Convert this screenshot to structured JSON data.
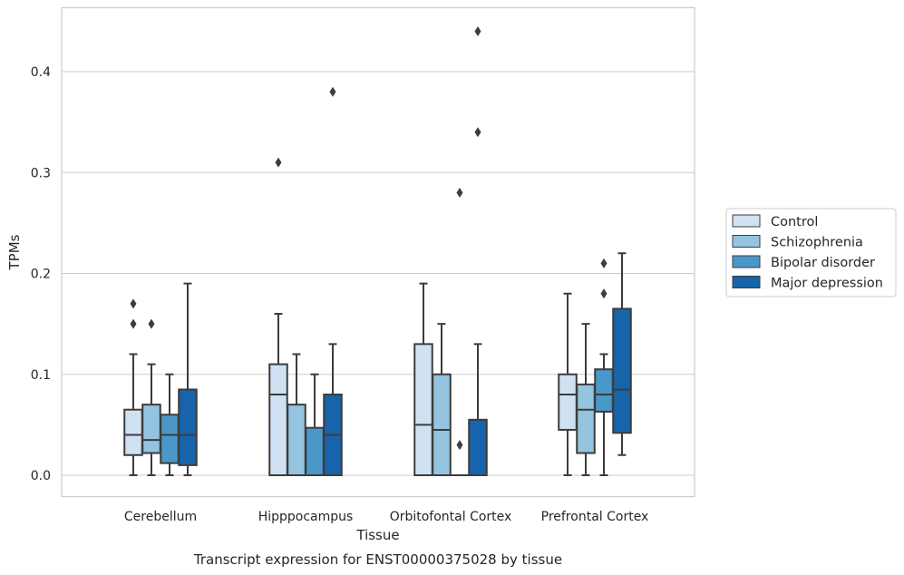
{
  "chart_data": {
    "type": "box",
    "title": "Transcript expression for ENST00000375028 by tissue",
    "xlabel": "Tissue",
    "ylabel": "TPMs",
    "ylim": [
      -0.021,
      0.464
    ],
    "yticks": [
      0.0,
      0.1,
      0.2,
      0.3,
      0.4
    ],
    "ytick_labels": [
      "0.0",
      "0.1",
      "0.2",
      "0.3",
      "0.4"
    ],
    "grid": "horizontal",
    "legend_position": "right",
    "categories": [
      "Cerebellum",
      "Hipppocampus",
      "Orbitofontal Cortex",
      "Prefrontal Cortex"
    ],
    "series": [
      {
        "name": "Control",
        "color": "#d0e1f2",
        "boxes": [
          {
            "q1": 0.02,
            "median": 0.04,
            "q3": 0.065,
            "whisker_low": 0.0,
            "whisker_high": 0.12,
            "outliers": [
              0.15,
              0.17
            ]
          },
          {
            "q1": 0.0,
            "median": 0.08,
            "q3": 0.11,
            "whisker_low": 0.0,
            "whisker_high": 0.16,
            "outliers": [
              0.31
            ]
          },
          {
            "q1": 0.0,
            "median": 0.05,
            "q3": 0.13,
            "whisker_low": 0.0,
            "whisker_high": 0.19,
            "outliers": []
          },
          {
            "q1": 0.045,
            "median": 0.08,
            "q3": 0.1,
            "whisker_low": 0.0,
            "whisker_high": 0.18,
            "outliers": []
          }
        ]
      },
      {
        "name": "Schizophrenia",
        "color": "#94c4df",
        "boxes": [
          {
            "q1": 0.022,
            "median": 0.035,
            "q3": 0.07,
            "whisker_low": 0.0,
            "whisker_high": 0.11,
            "outliers": [
              0.15
            ]
          },
          {
            "q1": 0.0,
            "median": 0.0,
            "q3": 0.07,
            "whisker_low": 0.0,
            "whisker_high": 0.12,
            "outliers": []
          },
          {
            "q1": 0.0,
            "median": 0.045,
            "q3": 0.1,
            "whisker_low": 0.0,
            "whisker_high": 0.15,
            "outliers": []
          },
          {
            "q1": 0.022,
            "median": 0.065,
            "q3": 0.09,
            "whisker_low": 0.0,
            "whisker_high": 0.15,
            "outliers": []
          }
        ]
      },
      {
        "name": "Bipolar disorder",
        "color": "#4a98c9",
        "boxes": [
          {
            "q1": 0.012,
            "median": 0.04,
            "q3": 0.06,
            "whisker_low": 0.0,
            "whisker_high": 0.1,
            "outliers": []
          },
          {
            "q1": 0.0,
            "median": 0.0,
            "q3": 0.047,
            "whisker_low": 0.0,
            "whisker_high": 0.1,
            "outliers": []
          },
          {
            "q1": 0.0,
            "median": 0.0,
            "q3": 0.0,
            "whisker_low": 0.0,
            "whisker_high": 0.0,
            "outliers": [
              0.03,
              0.28
            ]
          },
          {
            "q1": 0.063,
            "median": 0.08,
            "q3": 0.105,
            "whisker_low": 0.0,
            "whisker_high": 0.12,
            "outliers": [
              0.18,
              0.21
            ]
          }
        ]
      },
      {
        "name": "Major depression",
        "color": "#1764ab",
        "boxes": [
          {
            "q1": 0.01,
            "median": 0.04,
            "q3": 0.085,
            "whisker_low": 0.0,
            "whisker_high": 0.19,
            "outliers": []
          },
          {
            "q1": 0.0,
            "median": 0.04,
            "q3": 0.08,
            "whisker_low": 0.0,
            "whisker_high": 0.13,
            "outliers": [
              0.38
            ]
          },
          {
            "q1": 0.0,
            "median": 0.0,
            "q3": 0.055,
            "whisker_low": 0.0,
            "whisker_high": 0.13,
            "outliers": [
              0.34,
              0.44
            ]
          },
          {
            "q1": 0.042,
            "median": 0.085,
            "q3": 0.165,
            "whisker_low": 0.02,
            "whisker_high": 0.22,
            "outliers": []
          }
        ]
      }
    ]
  }
}
